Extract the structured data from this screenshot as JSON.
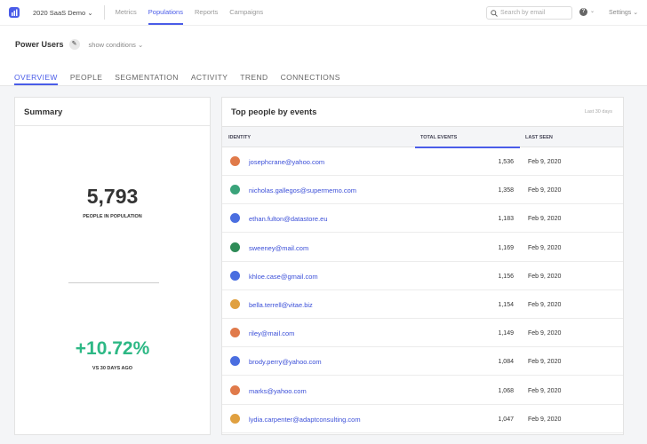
{
  "nav": {
    "project": "2020 SaaS Demo",
    "items": [
      "Metrics",
      "Populations",
      "Reports",
      "Campaigns"
    ],
    "active": "Populations",
    "search_placeholder": "Search by email",
    "help": "?",
    "settings": "Settings"
  },
  "header": {
    "title": "Power Users",
    "show_conditions": "show conditions"
  },
  "tabs": [
    "OVERVIEW",
    "PEOPLE",
    "SEGMENTATION",
    "ACTIVITY",
    "TREND",
    "CONNECTIONS"
  ],
  "summary": {
    "title": "Summary",
    "count": "5,793",
    "count_label": "PEOPLE IN POPULATION",
    "change": "+10.72%",
    "change_label": "VS 30 DAYS AGO",
    "change_color": "#2db885"
  },
  "top_people": {
    "title": "Top people by events",
    "range": "Last 30 days",
    "columns": [
      "IDENTITY",
      "TOTAL EVENTS",
      "LAST SEEN"
    ],
    "rows": [
      {
        "email": "josephcrane@yahoo.com",
        "events": "1,536",
        "last_seen": "Feb 9, 2020"
      },
      {
        "email": "nicholas.gallegos@supermemo.com",
        "events": "1,358",
        "last_seen": "Feb 9, 2020"
      },
      {
        "email": "ethan.fulton@datastore.eu",
        "events": "1,183",
        "last_seen": "Feb 9, 2020"
      },
      {
        "email": "sweeney@mail.com",
        "events": "1,169",
        "last_seen": "Feb 9, 2020"
      },
      {
        "email": "khloe.case@gmail.com",
        "events": "1,156",
        "last_seen": "Feb 9, 2020"
      },
      {
        "email": "bella.terrell@vitae.biz",
        "events": "1,154",
        "last_seen": "Feb 9, 2020"
      },
      {
        "email": "riley@mail.com",
        "events": "1,149",
        "last_seen": "Feb 9, 2020"
      },
      {
        "email": "brody.perry@yahoo.com",
        "events": "1,084",
        "last_seen": "Feb 9, 2020"
      },
      {
        "email": "marks@yahoo.com",
        "events": "1,068",
        "last_seen": "Feb 9, 2020"
      },
      {
        "email": "lydia.carpenter@adaptconsulting.com",
        "events": "1,047",
        "last_seen": "Feb 9, 2020"
      }
    ]
  },
  "accent": "#4a5ce8"
}
